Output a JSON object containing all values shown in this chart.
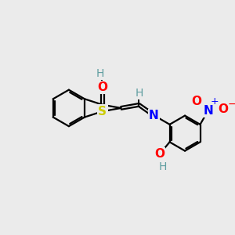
{
  "bg_color": "#ebebeb",
  "atom_colors": {
    "C": "#000000",
    "H": "#5f9ea0",
    "O": "#ff0000",
    "N": "#0000ff",
    "S": "#cccc00"
  },
  "bond_color": "#000000",
  "bond_width": 1.6,
  "xlim": [
    -0.2,
    5.8
  ],
  "ylim": [
    -0.3,
    4.8
  ]
}
